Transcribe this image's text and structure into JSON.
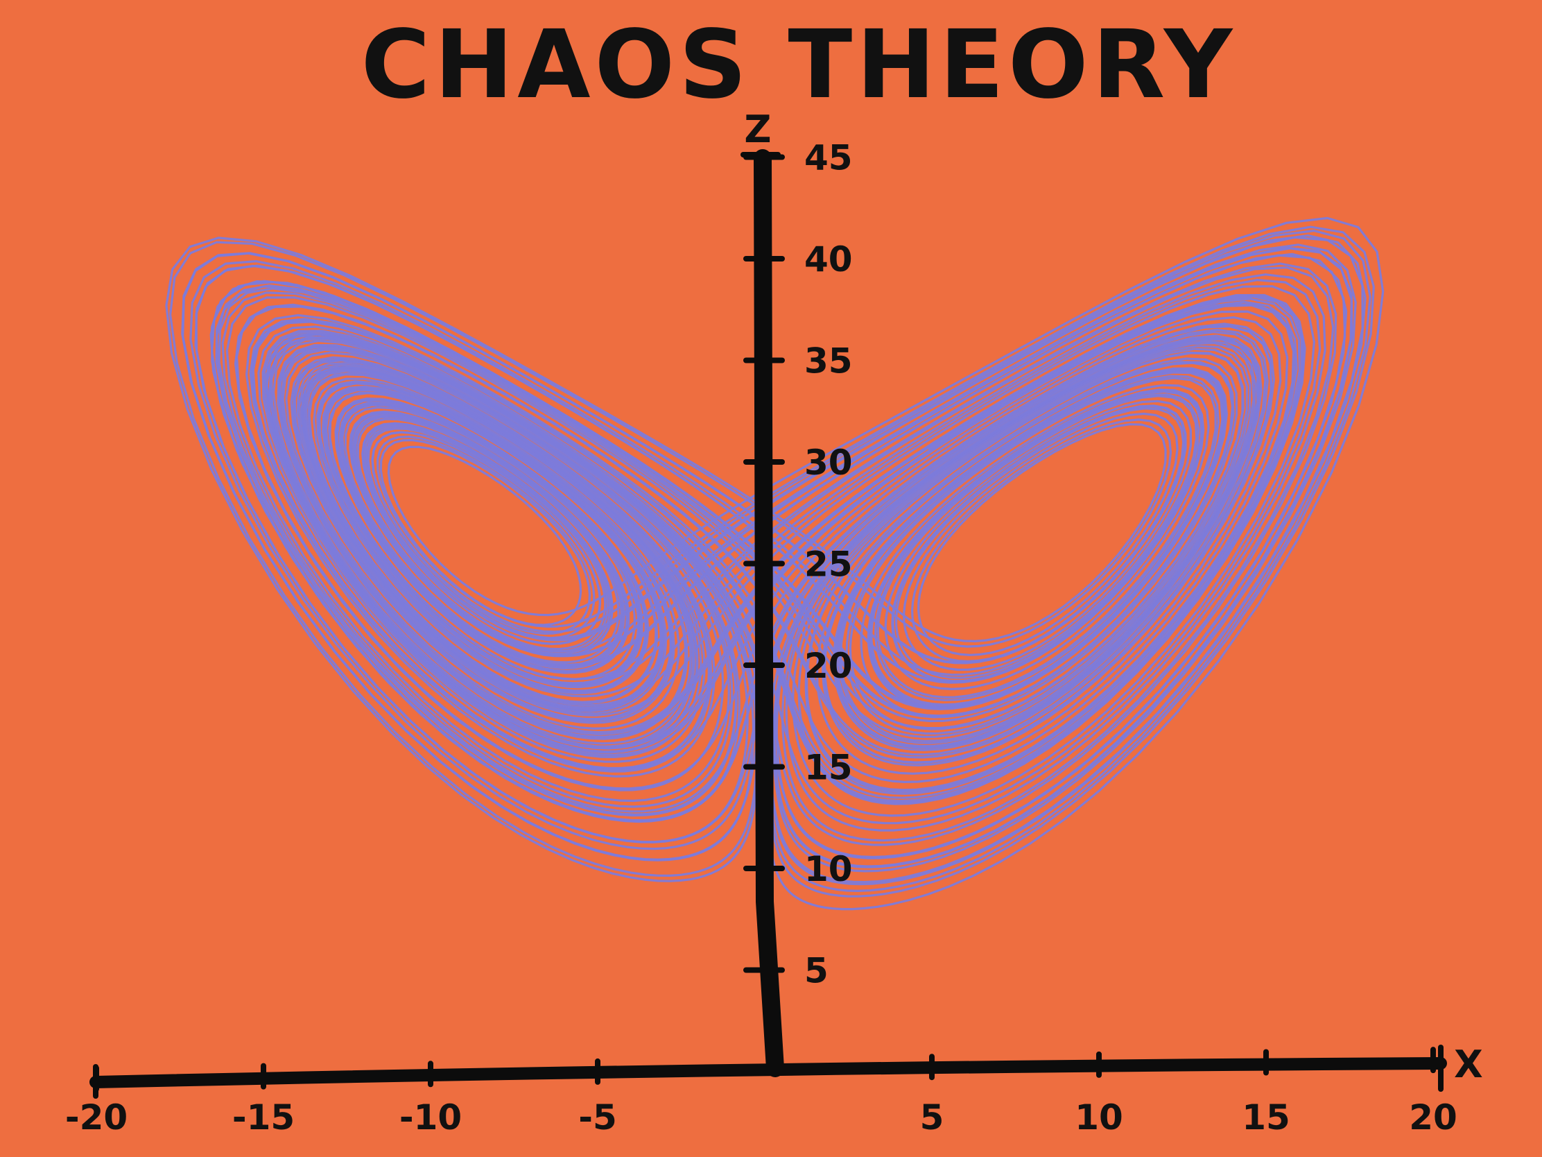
{
  "colors": {
    "background": "#EE6E40",
    "curve": "#7C7BDB",
    "ink": "#111111"
  },
  "chart_data": {
    "type": "line",
    "title": "CHAOS THEORY",
    "xlabel": "X",
    "ylabel": "Z",
    "xlim": [
      -20,
      20
    ],
    "ylim": [
      0,
      45
    ],
    "x_ticks": [
      -20,
      -15,
      -10,
      -5,
      5,
      10,
      15,
      20
    ],
    "x_tick_labels": [
      "-20",
      "-15",
      "-10",
      "-5",
      "5",
      "10",
      "15",
      "20"
    ],
    "y_ticks": [
      5,
      10,
      15,
      20,
      25,
      30,
      35,
      40,
      45
    ],
    "y_tick_labels": [
      "5",
      "10",
      "15",
      "20",
      "25",
      "30",
      "35",
      "40",
      "45"
    ],
    "grid": false,
    "series": [
      {
        "kind": "lorenz-attractor",
        "sigma": 10,
        "rho": 28,
        "beta": 2.6667,
        "initial_state": [
          1,
          1,
          1
        ],
        "x_range": [
          -18.5,
          18.5
        ],
        "z_range": [
          8,
          42
        ]
      }
    ]
  }
}
